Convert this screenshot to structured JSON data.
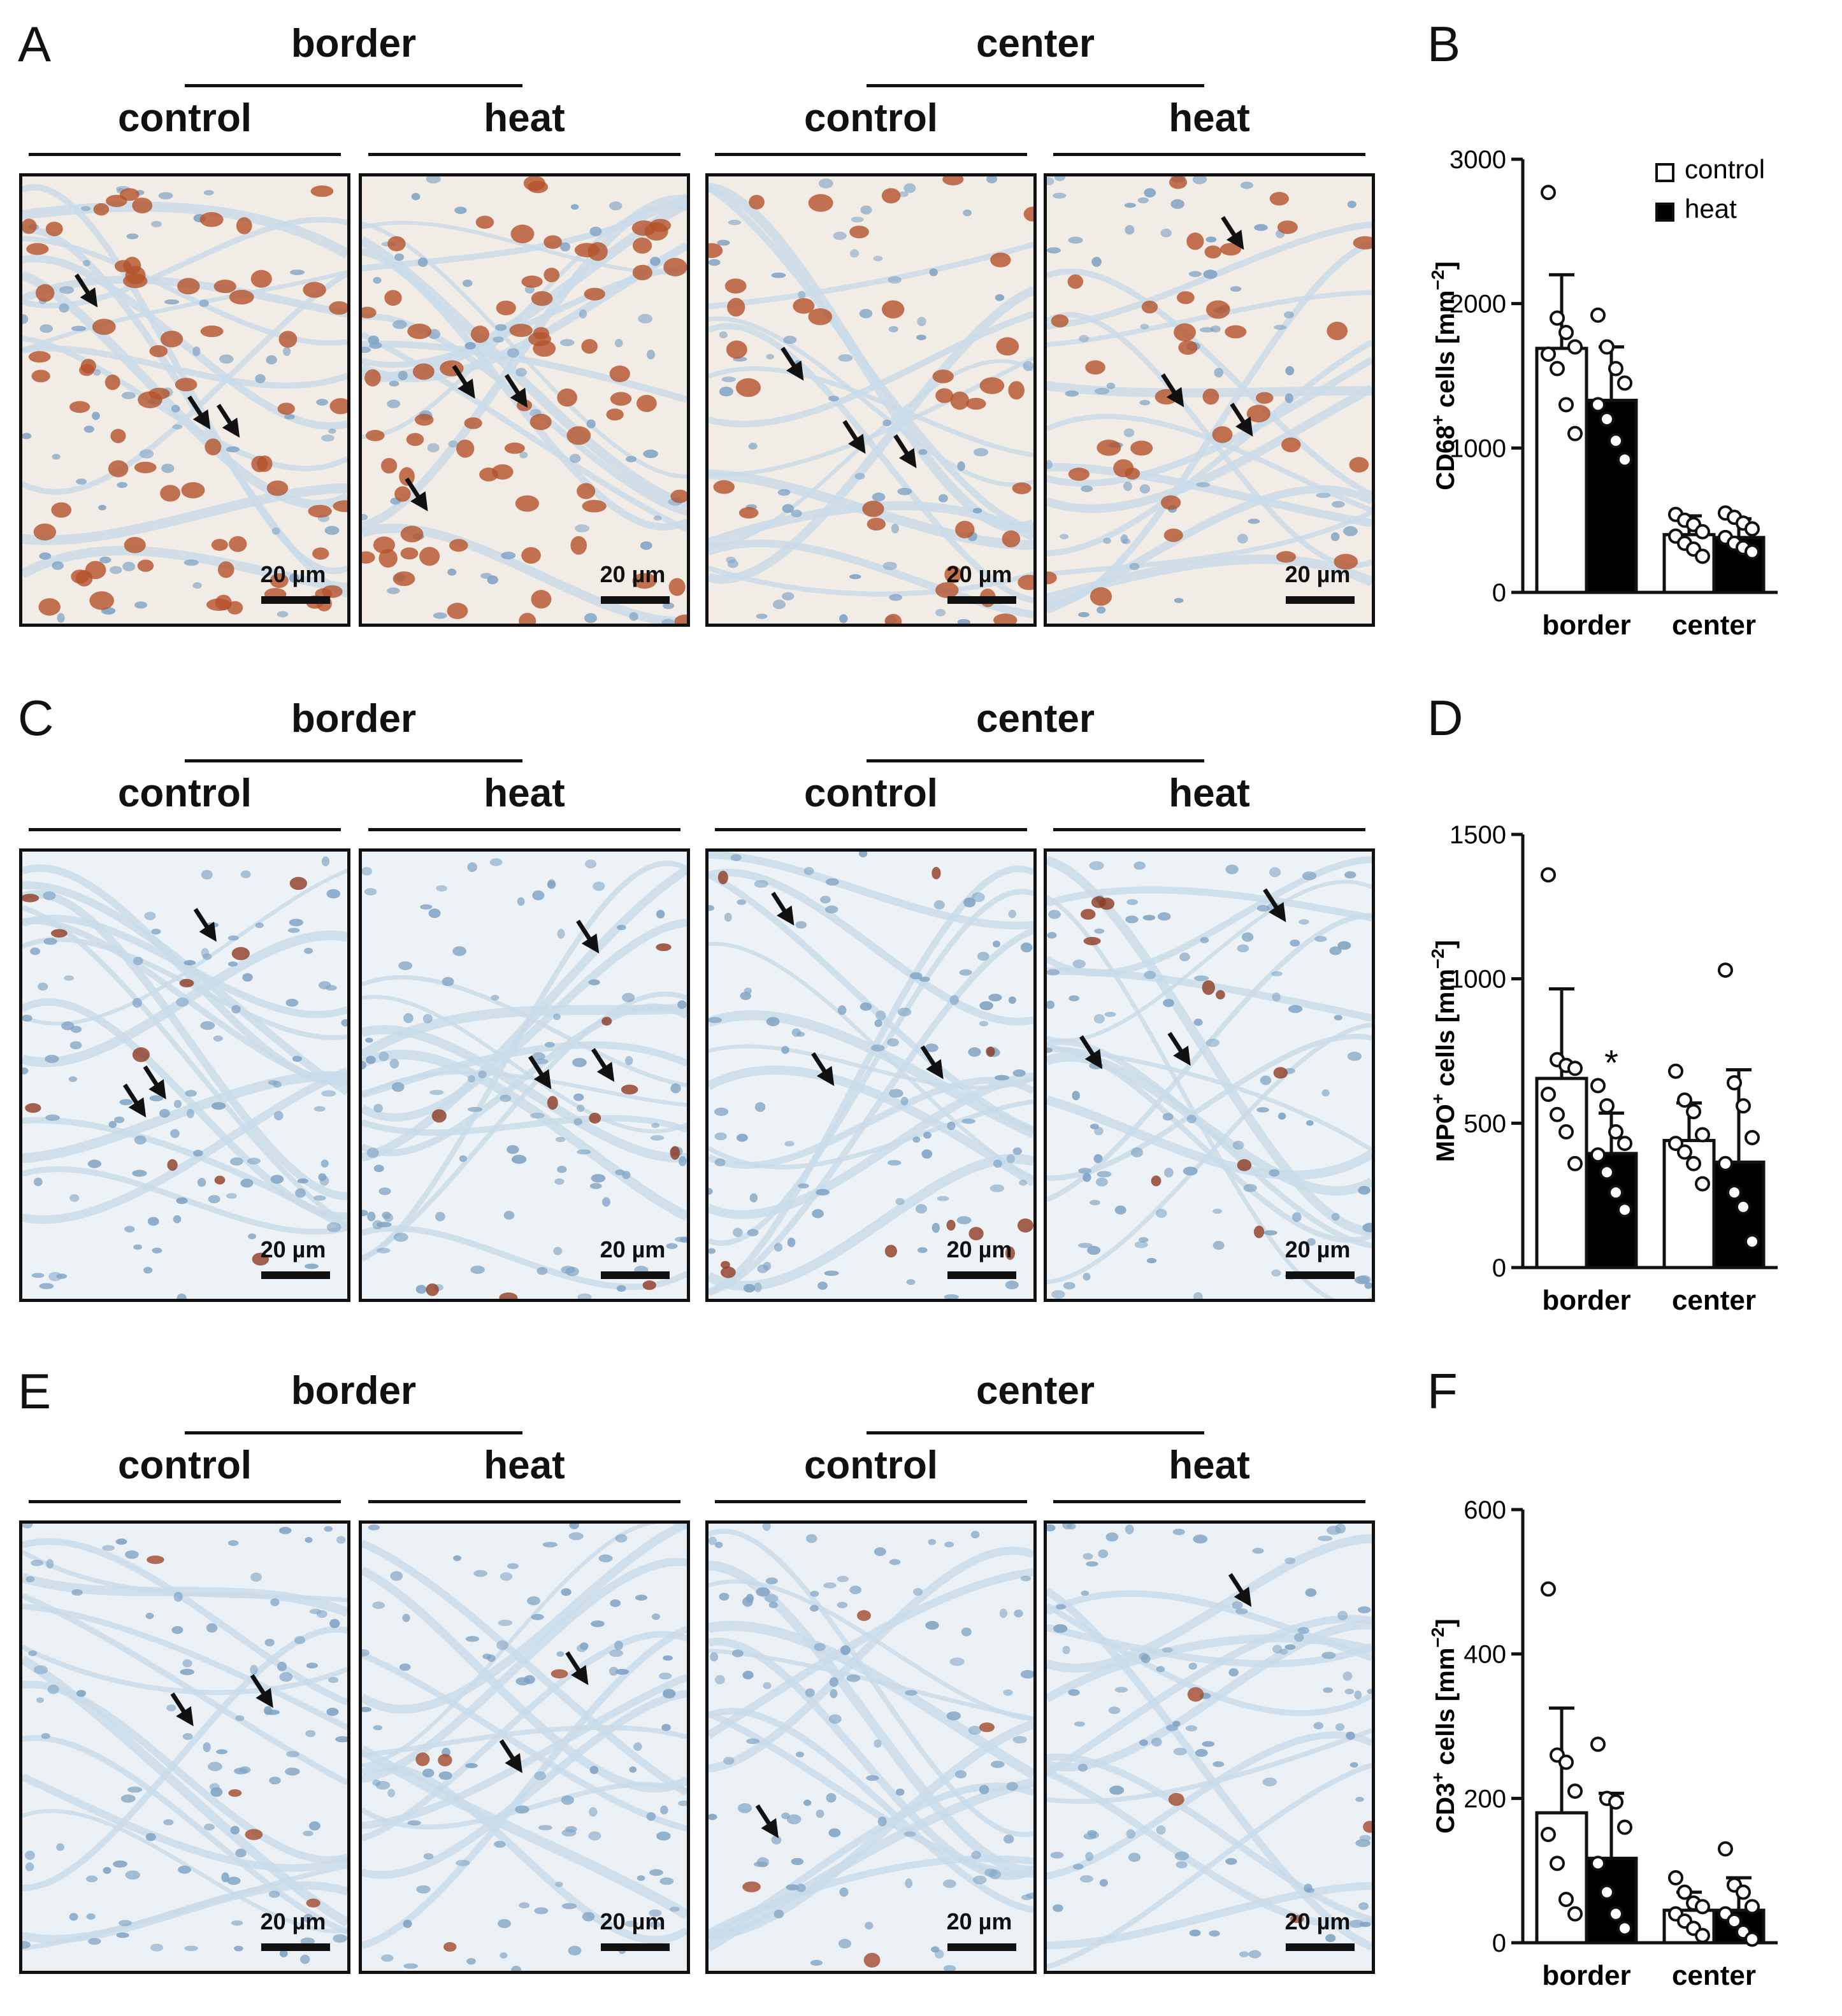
{
  "panel_letters": [
    "A",
    "B",
    "C",
    "D",
    "E",
    "F"
  ],
  "micrograph_rows": [
    {
      "letter": "A",
      "region_labels": [
        "border",
        "center"
      ],
      "condition_labels": [
        "control",
        "heat",
        "control",
        "heat"
      ],
      "scale_label": "20 µm",
      "stain": "CD68",
      "tint": "#f2ece6",
      "cell_color": "#b5532a"
    },
    {
      "letter": "C",
      "region_labels": [
        "border",
        "center"
      ],
      "condition_labels": [
        "control",
        "heat",
        "control",
        "heat"
      ],
      "scale_label": "20 µm",
      "stain": "MPO",
      "tint": "#edf2f6",
      "cell_color": "#8d3a22"
    },
    {
      "letter": "E",
      "region_labels": [
        "border",
        "center"
      ],
      "condition_labels": [
        "control",
        "heat",
        "control",
        "heat"
      ],
      "scale_label": "20 µm",
      "stain": "CD3",
      "tint": "#eaf0f4",
      "cell_color": "#a24a2c"
    }
  ],
  "legend": {
    "control": "control",
    "heat": "heat"
  },
  "colors": {
    "control_fill": "#ffffff",
    "heat_fill": "#000000",
    "axis": "#111111",
    "nuclei": "#7fa3c4",
    "stroma": "#c8dbe9"
  },
  "chart_data": [
    {
      "panel": "B",
      "type": "bar",
      "ylabel": "CD68⁺ cells [mm⁻²]",
      "ylabel_parts": {
        "pre": "CD68",
        "sup": "+",
        "mid": " cells [mm",
        "sup2": "−2",
        "post": "]"
      },
      "categories": [
        "border",
        "center"
      ],
      "yticks": [
        0,
        1000,
        2000,
        3000
      ],
      "ylim": [
        0,
        3000
      ],
      "legend": true,
      "series": [
        {
          "name": "control",
          "values": [
            1690,
            400
          ],
          "sd": [
            510,
            130
          ],
          "points": [
            [
              2770,
              1900,
              1800,
              1700,
              1650,
              1550,
              1300,
              1100
            ],
            [
              540,
              500,
              470,
              420,
              390,
              340,
              300,
              250
            ]
          ]
        },
        {
          "name": "heat",
          "values": [
            1330,
            380
          ],
          "sd": [
            370,
            130
          ],
          "points": [
            [
              1920,
              1700,
              1550,
              1450,
              1300,
              1200,
              1050,
              920
            ],
            [
              550,
              520,
              480,
              440,
              380,
              340,
              310,
              280
            ]
          ]
        }
      ],
      "annotations": []
    },
    {
      "panel": "D",
      "type": "bar",
      "ylabel": "MPO⁺ cells [mm⁻²]",
      "ylabel_parts": {
        "pre": "MPO",
        "sup": "+",
        "mid": " cells [mm",
        "sup2": "−2",
        "post": "]"
      },
      "categories": [
        "border",
        "center"
      ],
      "yticks": [
        0,
        500,
        1000,
        1500
      ],
      "ylim": [
        0,
        1500
      ],
      "legend": false,
      "series": [
        {
          "name": "control",
          "values": [
            655,
            440
          ],
          "sd": [
            310,
            130
          ],
          "points": [
            [
              1360,
              720,
              700,
              690,
              600,
              530,
              470,
              360
            ],
            [
              680,
              580,
              540,
              460,
              430,
              400,
              360,
              290
            ]
          ]
        },
        {
          "name": "heat",
          "values": [
            395,
            365
          ],
          "sd": [
            140,
            320
          ],
          "points": [
            [
              630,
              560,
              470,
              430,
              390,
              330,
              260,
              200
            ],
            [
              1030,
              640,
              560,
              450,
              360,
              260,
              210,
              90
            ]
          ]
        }
      ],
      "annotations": [
        {
          "text": "*",
          "category": "border",
          "series": "heat"
        }
      ]
    },
    {
      "panel": "F",
      "type": "bar",
      "ylabel": "CD3⁺ cells [mm⁻²]",
      "ylabel_parts": {
        "pre": "CD3",
        "sup": "+",
        "mid": " cells [mm",
        "sup2": "−2",
        "post": "]"
      },
      "categories": [
        "border",
        "center"
      ],
      "yticks": [
        0,
        200,
        400,
        600
      ],
      "ylim": [
        0,
        600
      ],
      "legend": false,
      "series": [
        {
          "name": "control",
          "values": [
            180,
            45
          ],
          "sd": [
            145,
            25
          ],
          "points": [
            [
              490,
              260,
              250,
              210,
              150,
              110,
              60,
              40
            ],
            [
              90,
              70,
              55,
              50,
              40,
              30,
              20,
              10
            ]
          ]
        },
        {
          "name": "heat",
          "values": [
            117,
            45
          ],
          "sd": [
            90,
            45
          ],
          "points": [
            [
              275,
              200,
              195,
              160,
              110,
              70,
              40,
              20
            ],
            [
              130,
              80,
              70,
              50,
              40,
              30,
              15,
              5
            ]
          ]
        }
      ],
      "annotations": []
    }
  ]
}
